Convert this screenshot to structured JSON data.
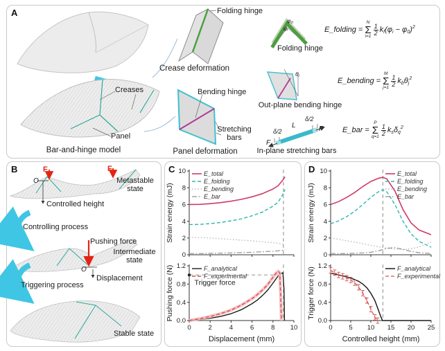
{
  "panelA": {
    "label": "A",
    "creases_label": "Creases",
    "panel_label": "Panel",
    "model_caption": "Bar-and-hinge model",
    "folding_hinge_pointer": "Folding hinge",
    "crease_caption": "Crease deformation",
    "bending_hinge_label": "Bending hinge",
    "stretching_bars_label": "Stretching bars",
    "panel_caption": "Panel deformation",
    "hinge_icon": {
      "caption": "Folding hinge",
      "phi0": "φ₀",
      "phii": "φᵢ"
    },
    "bend_icon": {
      "caption": "Out-plane bending hinge",
      "theta": "θⱼ"
    },
    "bar_icon": {
      "caption": "In-plane stretching bars",
      "delta_left": "δ/2",
      "delta_right": "δ/2",
      "length": "L",
      "force_left": "F",
      "force_right": "F"
    },
    "equations": [
      {
        "lhs": "E_folding =",
        "top": "N",
        "bot": "i=1",
        "num": "1",
        "den": "2",
        "terms": [
          {
            "t": "k"
          },
          {
            "t": "f",
            "s": "sub"
          },
          {
            "t": "(φ"
          },
          {
            "t": "i",
            "s": "sub"
          },
          {
            "t": " − φ"
          },
          {
            "t": "0",
            "s": "sub"
          },
          {
            "t": ")"
          },
          {
            "t": "2",
            "s": "sup"
          }
        ]
      },
      {
        "lhs": "E_bending =",
        "top": "M",
        "bot": "j=1",
        "num": "1",
        "den": "2",
        "terms": [
          {
            "t": "k"
          },
          {
            "t": "b",
            "s": "sub"
          },
          {
            "t": "θ"
          },
          {
            "t": "j",
            "s": "sub"
          },
          {
            "t": "2",
            "s": "sup"
          }
        ]
      },
      {
        "lhs": "E_bar =",
        "top": "P",
        "bot": "q=1",
        "num": "1",
        "den": "2",
        "terms": [
          {
            "t": "k"
          },
          {
            "t": "s",
            "s": "sub"
          },
          {
            "t": "δ"
          },
          {
            "t": "q",
            "s": "sub"
          },
          {
            "t": "2",
            "s": "sup"
          }
        ]
      }
    ]
  },
  "panelB": {
    "label": "B",
    "force1": "F",
    "force2": "F",
    "origin1": "O",
    "origin2": "O",
    "controlled_height": "Controlled height",
    "metastable": "Metastable state",
    "controlling": "Controlling process",
    "pushing_force": "Pushing force",
    "intermediate": "Intermediate state",
    "displacement": "Displacement",
    "triggering": "Triggering process",
    "stable": "Stable state"
  },
  "panelC": {
    "label": "C"
  },
  "panelD": {
    "label": "D"
  },
  "colors": {
    "e_total": "#cf3a68",
    "e_folding": "#2cb5b0",
    "e_bending": "#bdbdbd",
    "e_bar": "#909090",
    "f_analytical": "#1c1c1c",
    "f_experimental": "#d05454",
    "exp_band": "#f4bcc0",
    "reference_dash": "#9e9e9e",
    "cyan_arrow": "#3fc6e4",
    "red_arrow": "#e42313",
    "green_hinge": "#4f9c42",
    "magenta_hinge": "#b23a97",
    "cyan_bar": "#39b9c9",
    "teal_crease": "#2fa89b"
  },
  "chart_data": [
    {
      "id": "c-top",
      "type": "line",
      "title": "",
      "xlabel": "",
      "ylabel": "Strain energy (mJ)",
      "xlim": [
        0,
        10
      ],
      "ylim": [
        0,
        10
      ],
      "xticks": [
        0,
        2,
        4,
        6,
        8,
        10
      ],
      "xtick_labels": null,
      "yticks": [
        0,
        2,
        4,
        6,
        8,
        10
      ],
      "ytick_labels": [
        "0",
        "2",
        "4",
        "6",
        "8",
        "10"
      ],
      "legend_position": "top-left",
      "vline": 9,
      "series": [
        {
          "name": "E_total",
          "color": "#cf3a68",
          "style": "solid",
          "width": 1.6,
          "x": [
            0,
            1,
            2,
            3,
            4,
            5,
            6,
            7,
            8,
            8.5,
            8.9,
            9.15
          ],
          "y": [
            6.0,
            6.02,
            6.1,
            6.22,
            6.4,
            6.62,
            6.92,
            7.3,
            7.85,
            8.25,
            8.85,
            9.3
          ]
        },
        {
          "name": "E_folding",
          "color": "#2cb5b0",
          "style": "dashed",
          "width": 1.4,
          "x": [
            0,
            1,
            2,
            3,
            4,
            5,
            6,
            7,
            8,
            8.5,
            8.9,
            9.15
          ],
          "y": [
            3.6,
            3.63,
            3.72,
            3.85,
            4.05,
            4.3,
            4.65,
            5.1,
            5.8,
            6.3,
            7.1,
            7.8
          ]
        },
        {
          "name": "E_bending",
          "color": "#bdbdbd",
          "style": "dotted",
          "width": 1.4,
          "x": [
            0,
            1,
            2,
            3,
            4,
            5,
            6,
            7,
            8,
            8.5,
            8.9,
            9.15
          ],
          "y": [
            2.1,
            2.05,
            2.0,
            1.92,
            1.83,
            1.74,
            1.65,
            1.55,
            1.45,
            1.38,
            1.28,
            1.2
          ]
        },
        {
          "name": "E_bar",
          "color": "#909090",
          "style": "dashdot",
          "width": 1.2,
          "x": [
            0,
            1,
            2,
            3,
            4,
            5,
            6,
            7,
            8,
            8.5,
            8.9,
            9.15
          ],
          "y": [
            0.15,
            0.15,
            0.17,
            0.19,
            0.22,
            0.26,
            0.3,
            0.36,
            0.42,
            0.47,
            0.54,
            0.62
          ]
        }
      ]
    },
    {
      "id": "c-bottom",
      "type": "line",
      "title": "",
      "xlabel": "Displacement (mm)",
      "ylabel": "Pushing force (N)",
      "xlim": [
        0,
        10
      ],
      "ylim": [
        0,
        1.2
      ],
      "xticks": [
        0,
        2,
        4,
        6,
        8,
        10
      ],
      "xtick_labels": [
        "0",
        "2",
        "4",
        "6",
        "8",
        "10"
      ],
      "yticks": [
        0,
        0.4,
        0.8,
        1.2
      ],
      "ytick_labels": [
        "0.0",
        "0.4",
        "0.8",
        "1.2"
      ],
      "legend_position": "top-left",
      "vline": 9,
      "hline": {
        "y": 1.0,
        "x0": 0,
        "x1": 9,
        "label": "Trigger force",
        "label_x": 0.5,
        "label_y": 0.78,
        "dot": true
      },
      "series": [
        {
          "name": "F_analytical",
          "color": "#1c1c1c",
          "style": "solid",
          "width": 1.4,
          "x": [
            0,
            1,
            2,
            3,
            4,
            5,
            6,
            6.5,
            7,
            7.5,
            8,
            8.4,
            8.7,
            8.95,
            9.05,
            9.1
          ],
          "y": [
            0,
            0.02,
            0.05,
            0.09,
            0.15,
            0.24,
            0.37,
            0.45,
            0.55,
            0.67,
            0.82,
            0.95,
            1.02,
            1.05,
            0.7,
            0
          ]
        },
        {
          "name": "F_experimental",
          "color": "#d05454",
          "style": "dashed",
          "width": 1.4,
          "band": true,
          "x": [
            0,
            1,
            2,
            3,
            4,
            5,
            6,
            6.5,
            7,
            7.5,
            8,
            8.3,
            8.5,
            8.65,
            8.75,
            8.8
          ],
          "y": [
            0,
            0.04,
            0.09,
            0.15,
            0.23,
            0.34,
            0.48,
            0.57,
            0.67,
            0.79,
            0.95,
            1.04,
            1.08,
            1.05,
            0.5,
            0
          ]
        }
      ]
    },
    {
      "id": "d-top",
      "type": "line",
      "title": "",
      "xlabel": "",
      "ylabel": "Strain energy (mJ)",
      "xlim": [
        0,
        25
      ],
      "ylim": [
        0,
        10
      ],
      "xticks": [
        0,
        5,
        10,
        15,
        20,
        25
      ],
      "xtick_labels": null,
      "yticks": [
        0,
        2,
        4,
        6,
        8,
        10
      ],
      "ytick_labels": [
        "0",
        "2",
        "4",
        "6",
        "8",
        "10"
      ],
      "legend_position": "top-right",
      "vline": 13,
      "series": [
        {
          "name": "E_total",
          "color": "#cf3a68",
          "style": "solid",
          "width": 1.6,
          "x": [
            0,
            2,
            4,
            6,
            8,
            10,
            12,
            13,
            14,
            16,
            18,
            20,
            22,
            25
          ],
          "y": [
            6.0,
            6.35,
            6.85,
            7.45,
            8.15,
            8.75,
            9.15,
            9.25,
            9.05,
            7.6,
            5.4,
            3.8,
            2.95,
            2.4
          ]
        },
        {
          "name": "E_folding",
          "color": "#2cb5b0",
          "style": "dashed",
          "width": 1.4,
          "x": [
            0,
            2,
            4,
            6,
            8,
            10,
            12,
            13,
            14,
            16,
            18,
            20,
            22,
            25
          ],
          "y": [
            3.7,
            4.05,
            4.55,
            5.2,
            6.0,
            6.85,
            7.55,
            7.75,
            7.5,
            6.0,
            4.0,
            2.5,
            1.6,
            0.9
          ]
        },
        {
          "name": "E_bending",
          "color": "#bdbdbd",
          "style": "dotted",
          "width": 1.4,
          "x": [
            0,
            2,
            4,
            6,
            8,
            10,
            12,
            13,
            14,
            16,
            18,
            20,
            22,
            25
          ],
          "y": [
            2.0,
            1.85,
            1.68,
            1.5,
            1.32,
            1.12,
            0.95,
            0.88,
            0.8,
            0.68,
            0.62,
            0.72,
            0.95,
            1.5
          ]
        },
        {
          "name": "E_bar",
          "color": "#909090",
          "style": "dashdot",
          "width": 1.2,
          "x": [
            0,
            2,
            4,
            6,
            8,
            10,
            12,
            13,
            14,
            16,
            18,
            20,
            22,
            25
          ],
          "y": [
            0.15,
            0.15,
            0.16,
            0.18,
            0.22,
            0.3,
            0.5,
            0.62,
            0.78,
            0.85,
            0.65,
            0.4,
            0.25,
            0.15
          ]
        }
      ]
    },
    {
      "id": "d-bottom",
      "type": "line",
      "title": "",
      "xlabel": "Controlled height (mm)",
      "ylabel": "Trigger force (N)",
      "xlim": [
        0,
        25
      ],
      "ylim": [
        0,
        1.2
      ],
      "xticks": [
        0,
        5,
        10,
        15,
        20,
        25
      ],
      "xtick_labels": [
        "0",
        "5",
        "10",
        "15",
        "20",
        "25"
      ],
      "yticks": [
        0,
        0.4,
        0.8,
        1.2
      ],
      "ytick_labels": [
        "0.0",
        "0.4",
        "0.8",
        "1.2"
      ],
      "legend_position": "top-right",
      "vline": 13,
      "series": [
        {
          "name": "F_analytical",
          "color": "#1c1c1c",
          "style": "solid",
          "width": 1.5,
          "x": [
            0,
            2,
            4,
            6,
            7,
            8,
            9,
            10,
            11,
            12,
            12.5,
            12.9,
            14,
            17,
            21,
            25
          ],
          "y": [
            1.04,
            1.0,
            0.96,
            0.9,
            0.86,
            0.8,
            0.72,
            0.6,
            0.44,
            0.2,
            0.08,
            0.0,
            0.0,
            0.0,
            0.0,
            0.0
          ]
        },
        {
          "name": "F_experimental",
          "color": "#d05454",
          "style": "dashed",
          "width": 1.3,
          "yerr": 0.06,
          "x": [
            0,
            1,
            2,
            3,
            4,
            5,
            6,
            7,
            8,
            9,
            10,
            11,
            11.7
          ],
          "y": [
            1.1,
            1.05,
            1.0,
            0.97,
            0.93,
            0.89,
            0.83,
            0.73,
            0.6,
            0.44,
            0.25,
            0.07,
            0.0
          ]
        }
      ]
    }
  ]
}
